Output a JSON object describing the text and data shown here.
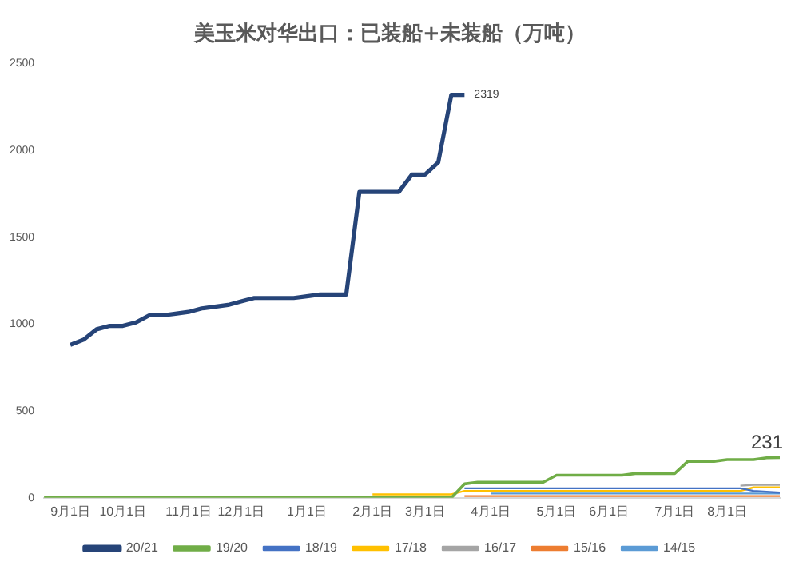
{
  "chart_data": {
    "type": "line",
    "title": "美玉米对华出口：已装船+未装船（万吨）",
    "categories": [
      null,
      null,
      "9月1日",
      null,
      null,
      null,
      "10月1日",
      null,
      null,
      null,
      null,
      "11月1日",
      null,
      null,
      null,
      "12月1日",
      null,
      null,
      null,
      null,
      "1月1日",
      null,
      null,
      null,
      null,
      "2月1日",
      null,
      null,
      null,
      "3月1日",
      null,
      null,
      null,
      null,
      "4月1日",
      null,
      null,
      null,
      null,
      "5月1日",
      null,
      null,
      null,
      "6月1日",
      null,
      null,
      null,
      null,
      "7月1日",
      null,
      null,
      null,
      "8月1日",
      null,
      null,
      null,
      null
    ],
    "ylim": [
      0,
      2500
    ],
    "yticks": [
      0,
      500,
      1000,
      1500,
      2000,
      2500
    ],
    "grid": false,
    "legend": "bottom",
    "marker": "none",
    "line_style": "solid",
    "series": [
      {
        "name": "14/15",
        "color": "#5b9bd5",
        "values": [
          null,
          null,
          null,
          null,
          null,
          null,
          null,
          null,
          null,
          null,
          null,
          null,
          null,
          null,
          null,
          null,
          null,
          null,
          null,
          null,
          null,
          null,
          null,
          null,
          null,
          null,
          null,
          null,
          null,
          null,
          null,
          null,
          null,
          null,
          25,
          25,
          25,
          25,
          25,
          25,
          25,
          25,
          25,
          25,
          25,
          25,
          25,
          25,
          25,
          25,
          25,
          25,
          25,
          25,
          25,
          25,
          25
        ]
      },
      {
        "name": "15/16",
        "color": "#ed7d31",
        "values": [
          null,
          null,
          null,
          null,
          null,
          null,
          null,
          null,
          null,
          null,
          null,
          null,
          null,
          null,
          null,
          null,
          null,
          null,
          null,
          null,
          null,
          null,
          null,
          null,
          null,
          null,
          null,
          null,
          null,
          null,
          null,
          null,
          10,
          10,
          10,
          10,
          10,
          10,
          10,
          10,
          10,
          10,
          10,
          10,
          10,
          10,
          10,
          10,
          10,
          10,
          10,
          10,
          10,
          10,
          10,
          10,
          10
        ]
      },
      {
        "name": "16/17",
        "color": "#a5a5a5",
        "values": [
          null,
          null,
          null,
          null,
          null,
          null,
          null,
          null,
          null,
          null,
          null,
          null,
          null,
          null,
          null,
          null,
          null,
          null,
          null,
          null,
          null,
          null,
          null,
          null,
          null,
          null,
          null,
          null,
          null,
          null,
          null,
          null,
          null,
          null,
          null,
          null,
          null,
          null,
          null,
          null,
          null,
          null,
          null,
          null,
          null,
          null,
          null,
          null,
          null,
          null,
          null,
          null,
          null,
          70,
          75,
          75,
          75
        ]
      },
      {
        "name": "17/18",
        "color": "#ffc000",
        "values": [
          null,
          null,
          null,
          null,
          null,
          null,
          null,
          null,
          null,
          null,
          null,
          null,
          null,
          null,
          null,
          null,
          null,
          null,
          null,
          null,
          null,
          null,
          null,
          null,
          null,
          20,
          20,
          20,
          20,
          20,
          20,
          20,
          40,
          40,
          40,
          40,
          40,
          40,
          40,
          40,
          40,
          40,
          40,
          40,
          40,
          40,
          40,
          40,
          40,
          40,
          40,
          40,
          40,
          40,
          60,
          60,
          60
        ]
      },
      {
        "name": "18/19",
        "color": "#4472c4",
        "values": [
          null,
          null,
          null,
          null,
          null,
          null,
          null,
          null,
          null,
          null,
          null,
          null,
          null,
          null,
          null,
          null,
          null,
          null,
          null,
          null,
          null,
          null,
          null,
          null,
          null,
          null,
          null,
          null,
          null,
          null,
          null,
          null,
          55,
          55,
          55,
          55,
          55,
          55,
          55,
          55,
          55,
          55,
          55,
          55,
          55,
          55,
          55,
          55,
          55,
          55,
          55,
          55,
          55,
          55,
          40,
          35,
          30
        ]
      },
      {
        "name": "19/20",
        "color": "#70ad47",
        "values": [
          0,
          0,
          0,
          0,
          0,
          0,
          0,
          0,
          0,
          0,
          0,
          0,
          0,
          0,
          0,
          0,
          0,
          0,
          0,
          0,
          0,
          0,
          0,
          0,
          0,
          0,
          0,
          0,
          0,
          0,
          0,
          0,
          80,
          90,
          90,
          90,
          90,
          90,
          90,
          130,
          130,
          130,
          130,
          130,
          130,
          140,
          140,
          140,
          140,
          210,
          210,
          210,
          220,
          220,
          220,
          230,
          231
        ],
        "value_labels": [
          null,
          null,
          null,
          null,
          null,
          null,
          null,
          null,
          null,
          null,
          null,
          null,
          null,
          null,
          null,
          null,
          null,
          null,
          null,
          null,
          null,
          null,
          null,
          null,
          null,
          null,
          null,
          null,
          null,
          null,
          null,
          null,
          null,
          null,
          null,
          null,
          null,
          null,
          null,
          null,
          null,
          null,
          null,
          null,
          null,
          null,
          null,
          null,
          null,
          null,
          null,
          null,
          null,
          null,
          null,
          null,
          "231"
        ]
      },
      {
        "name": "20/21",
        "color": "#264478",
        "values": [
          null,
          null,
          880,
          910,
          970,
          990,
          990,
          1010,
          1050,
          1050,
          1060,
          1070,
          1090,
          1100,
          1110,
          1130,
          1150,
          1150,
          1150,
          1150,
          1160,
          1170,
          1170,
          1170,
          1760,
          1760,
          1760,
          1760,
          1860,
          1860,
          1930,
          2319,
          2319,
          null,
          null,
          null,
          null,
          null,
          null,
          null,
          null,
          null,
          null,
          null,
          null,
          null,
          null,
          null,
          null,
          null,
          null,
          null,
          null,
          null,
          null,
          null,
          null
        ],
        "value_labels": [
          null,
          null,
          null,
          null,
          null,
          null,
          null,
          null,
          null,
          null,
          null,
          null,
          null,
          null,
          null,
          null,
          null,
          null,
          null,
          null,
          null,
          null,
          null,
          null,
          null,
          null,
          null,
          null,
          null,
          null,
          null,
          null,
          "2319",
          null,
          null,
          null,
          null,
          null,
          null,
          null,
          null,
          null,
          null,
          null,
          null,
          null,
          null,
          null,
          null,
          null,
          null,
          null,
          null,
          null,
          null,
          null,
          null
        ]
      }
    ]
  }
}
